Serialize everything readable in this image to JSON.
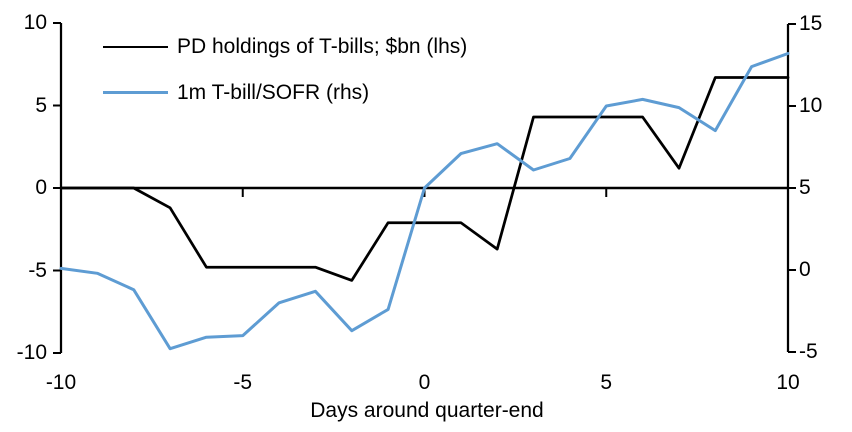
{
  "chart_data": {
    "type": "line",
    "title": "",
    "xlabel": "Days around quarter-end",
    "x": [
      -10,
      -9,
      -8,
      -7,
      -6,
      -5,
      -4,
      -3,
      -2,
      -1,
      0,
      1,
      2,
      3,
      4,
      5,
      6,
      7,
      8,
      9,
      10
    ],
    "series": [
      {
        "name": "PD holdings of T-bills; $bn (lhs)",
        "axis": "lhs",
        "color": "#000000",
        "values": [
          0,
          0,
          0,
          -1.2,
          -4.8,
          -4.8,
          -4.8,
          -4.8,
          -5.6,
          -2.1,
          -2.1,
          -2.1,
          -3.7,
          4.3,
          4.3,
          4.3,
          4.3,
          1.2,
          6.7,
          6.7,
          6.7
        ]
      },
      {
        "name": "1m T-bill/SOFR (rhs)",
        "axis": "rhs",
        "color": "#5e9cd3",
        "values": [
          0.1,
          -0.2,
          -1.2,
          -4.8,
          -4.1,
          -4.0,
          -2.0,
          -1.3,
          -3.7,
          -2.4,
          5.0,
          7.1,
          7.7,
          6.1,
          6.8,
          10.0,
          10.4,
          9.9,
          8.5,
          12.4,
          13.2
        ]
      }
    ],
    "lhs_axis": {
      "range": [
        -10,
        10
      ],
      "tick_labels": [
        "10",
        "5",
        "0",
        "-5",
        "-10"
      ],
      "tick_values": [
        10,
        5,
        0,
        -5,
        -10
      ]
    },
    "rhs_axis": {
      "range": [
        -5,
        15
      ],
      "tick_labels": [
        "15",
        "10",
        "5",
        "0",
        "-5"
      ],
      "tick_values": [
        15,
        10,
        5,
        0,
        -5
      ]
    },
    "x_axis": {
      "range": [
        -10,
        10
      ],
      "tick_labels": [
        "-10",
        "-5",
        "0",
        "5",
        "10"
      ],
      "tick_label_values": [
        -10,
        -5,
        0,
        5,
        10
      ],
      "tick_mark_values": [
        -5,
        0,
        5
      ]
    },
    "grid": false,
    "legend_position": "top-left-inside",
    "zero_line_on_lhs": 0
  },
  "colors": {
    "background": "#ffffff",
    "axis": "#000000",
    "text": "#000000",
    "series_pd": "#000000",
    "series_sofr": "#5e9cd3"
  }
}
